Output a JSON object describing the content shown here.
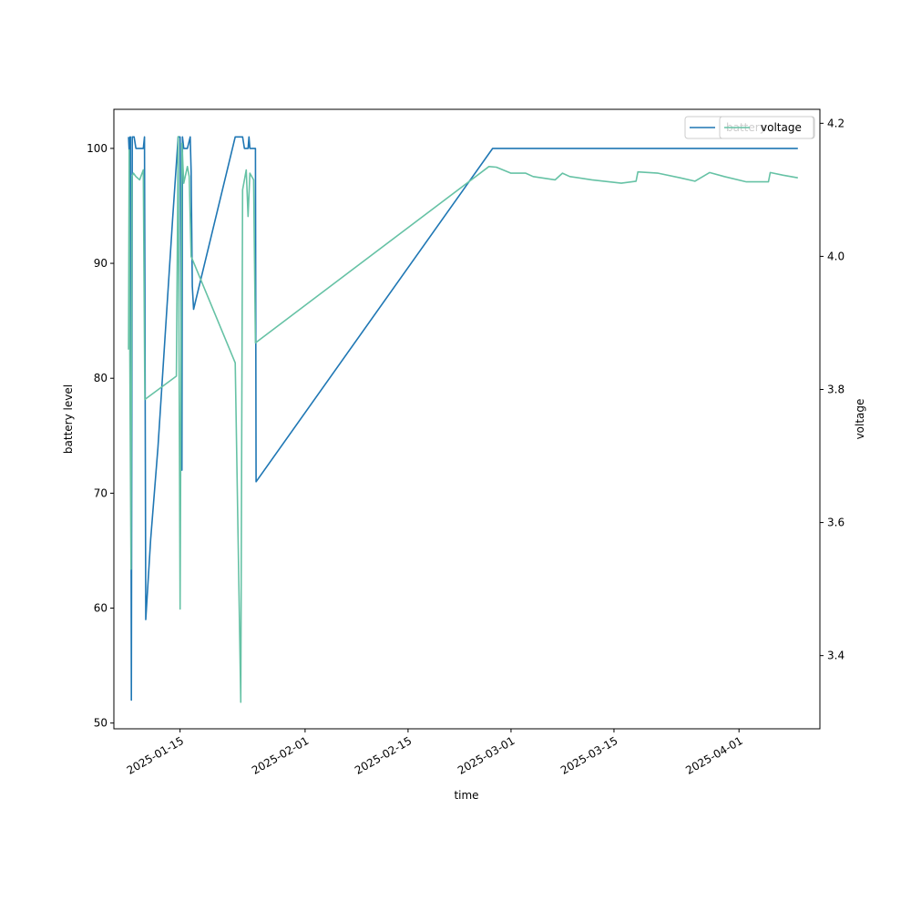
{
  "chart_data": {
    "type": "line",
    "xlabel": "time",
    "ylabel": "battery level",
    "y2label": "voltage",
    "x_ticks": [
      "2025-01-15",
      "2025-02-01",
      "2025-02-15",
      "2025-03-01",
      "2025-03-15",
      "2025-04-01"
    ],
    "xlim": [
      "2025-01-06",
      "2025-04-12"
    ],
    "ylim": [
      49.5,
      103.4
    ],
    "y_ticks": [
      50,
      60,
      70,
      80,
      90,
      100
    ],
    "y2lim": [
      3.29,
      4.221
    ],
    "y2_ticks": [
      "3.4",
      "3.6",
      "3.8",
      "4.0",
      "4.2"
    ],
    "y2_tick_values": [
      3.4,
      3.6,
      3.8,
      4.0,
      4.2
    ],
    "grid": false,
    "legends": [
      {
        "position": "top-right",
        "entries": [
          "battery"
        ]
      },
      {
        "position": "top-right",
        "entries": [
          "voltage"
        ]
      }
    ],
    "series": [
      {
        "name": "battery",
        "axis": "left",
        "color": "#1f77b4",
        "points": [
          [
            "2025-01-08T00:00",
            101
          ],
          [
            "2025-01-08T03:00",
            99
          ],
          [
            "2025-01-08T05:00",
            101
          ],
          [
            "2025-01-08T06:00",
            101
          ],
          [
            "2025-01-08T09:00",
            52
          ],
          [
            "2025-01-08T12:00",
            101
          ],
          [
            "2025-01-08T18:00",
            101
          ],
          [
            "2025-01-09T00:00",
            100
          ],
          [
            "2025-01-09T12:00",
            100
          ],
          [
            "2025-01-10T00:00",
            100
          ],
          [
            "2025-01-10T04:00",
            101
          ],
          [
            "2025-01-10T08:00",
            59
          ],
          [
            "2025-01-11T00:00",
            66
          ],
          [
            "2025-01-12T00:00",
            74
          ],
          [
            "2025-01-13T00:00",
            84
          ],
          [
            "2025-01-14T00:00",
            94
          ],
          [
            "2025-01-14T18:00",
            101
          ],
          [
            "2025-01-15T00:00",
            101
          ],
          [
            "2025-01-15T06:00",
            72
          ],
          [
            "2025-01-15T08:00",
            101
          ],
          [
            "2025-01-15T12:00",
            100
          ],
          [
            "2025-01-16T00:00",
            100
          ],
          [
            "2025-01-16T09:00",
            101
          ],
          [
            "2025-01-16T12:00",
            98
          ],
          [
            "2025-01-16T16:00",
            88
          ],
          [
            "2025-01-16T20:00",
            86
          ],
          [
            "2025-01-22T12:00",
            101
          ],
          [
            "2025-01-23T12:00",
            101
          ],
          [
            "2025-01-23T18:00",
            100
          ],
          [
            "2025-01-24T06:00",
            100
          ],
          [
            "2025-01-24T09:00",
            101
          ],
          [
            "2025-01-24T12:00",
            100
          ],
          [
            "2025-01-25T00:00",
            100
          ],
          [
            "2025-01-25T06:00",
            100
          ],
          [
            "2025-01-25T08:00",
            71
          ],
          [
            "2025-02-26T12:00",
            100
          ],
          [
            "2025-04-09T00:00",
            100
          ]
        ]
      },
      {
        "name": "voltage",
        "axis": "right",
        "color": "#66c2a5",
        "points": [
          [
            "2025-01-08T00:00",
            3.86
          ],
          [
            "2025-01-08T02:00",
            4.16
          ],
          [
            "2025-01-08T04:00",
            3.85
          ],
          [
            "2025-01-08T08:00",
            3.53
          ],
          [
            "2025-01-08T11:00",
            4.12
          ],
          [
            "2025-01-08T16:00",
            4.125
          ],
          [
            "2025-01-09T00:00",
            4.12
          ],
          [
            "2025-01-09T12:00",
            4.115
          ],
          [
            "2025-01-10T00:00",
            4.13
          ],
          [
            "2025-01-10T05:00",
            3.785
          ],
          [
            "2025-01-14T12:00",
            3.82
          ],
          [
            "2025-01-14T18:00",
            4.18
          ],
          [
            "2025-01-15T00:00",
            3.47
          ],
          [
            "2025-01-15T06:00",
            4.17
          ],
          [
            "2025-01-15T12:00",
            4.11
          ],
          [
            "2025-01-16T00:00",
            4.135
          ],
          [
            "2025-01-16T06:00",
            4.12
          ],
          [
            "2025-01-16T12:00",
            4.0
          ],
          [
            "2025-01-22T12:00",
            3.84
          ],
          [
            "2025-01-23T06:00",
            3.33
          ],
          [
            "2025-01-23T12:00",
            4.1
          ],
          [
            "2025-01-24T00:00",
            4.13
          ],
          [
            "2025-01-24T06:00",
            4.06
          ],
          [
            "2025-01-24T12:00",
            4.125
          ],
          [
            "2025-01-25T00:00",
            4.115
          ],
          [
            "2025-01-25T06:00",
            3.87
          ],
          [
            "2025-02-26T00:00",
            4.135
          ],
          [
            "2025-02-27T00:00",
            4.134
          ],
          [
            "2025-03-01T00:00",
            4.125
          ],
          [
            "2025-03-03T00:00",
            4.125
          ],
          [
            "2025-03-04T00:00",
            4.12
          ],
          [
            "2025-03-07T00:00",
            4.115
          ],
          [
            "2025-03-08T00:00",
            4.125
          ],
          [
            "2025-03-09T00:00",
            4.12
          ],
          [
            "2025-03-12T00:00",
            4.115
          ],
          [
            "2025-03-16T00:00",
            4.11
          ],
          [
            "2025-03-18T00:00",
            4.113
          ],
          [
            "2025-03-18T06:00",
            4.127
          ],
          [
            "2025-03-21T00:00",
            4.125
          ],
          [
            "2025-03-24T00:00",
            4.118
          ],
          [
            "2025-03-26T00:00",
            4.113
          ],
          [
            "2025-03-28T00:00",
            4.126
          ],
          [
            "2025-03-30T00:00",
            4.12
          ],
          [
            "2025-04-02T00:00",
            4.112
          ],
          [
            "2025-04-05T00:00",
            4.112
          ],
          [
            "2025-04-05T06:00",
            4.126
          ],
          [
            "2025-04-07T00:00",
            4.122
          ],
          [
            "2025-04-09T00:00",
            4.118
          ]
        ]
      }
    ]
  }
}
